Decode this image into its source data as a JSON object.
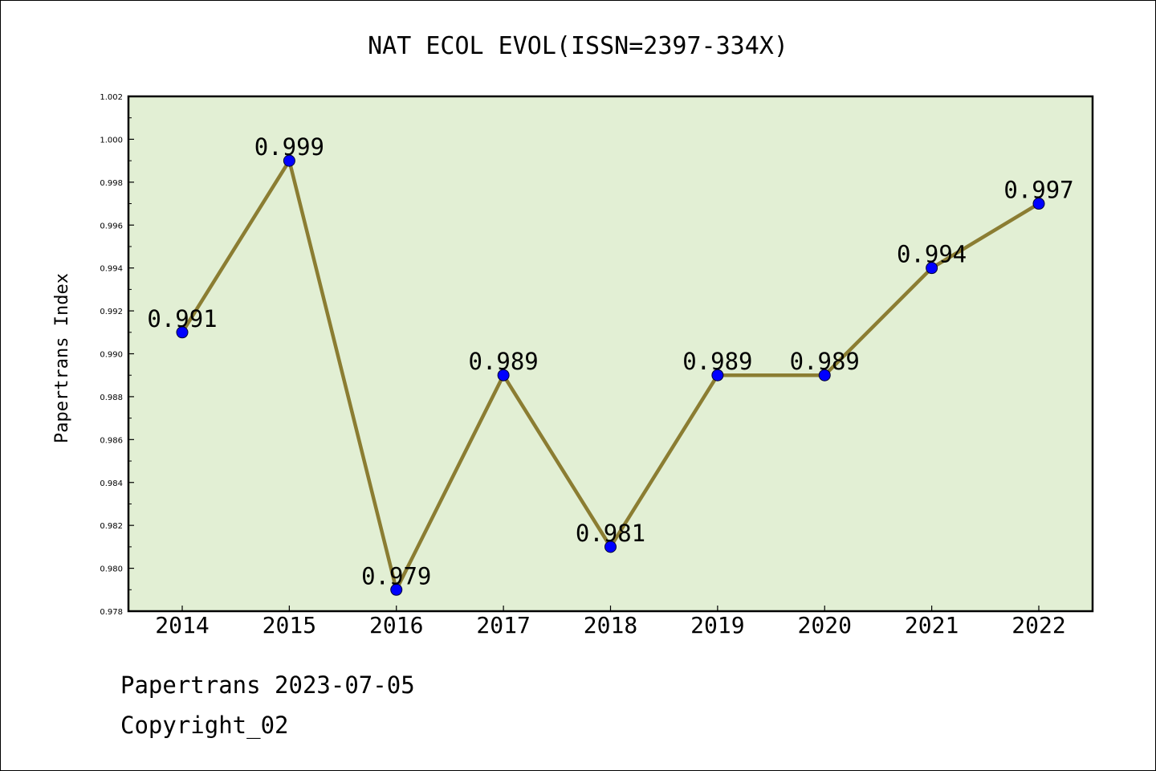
{
  "chart_data": {
    "type": "line",
    "title": "NAT ECOL EVOL(ISSN=2397-334X)",
    "ylabel": "Papertrans Index",
    "xlabel": "",
    "categories": [
      "2014",
      "2015",
      "2016",
      "2017",
      "2018",
      "2019",
      "2020",
      "2021",
      "2022"
    ],
    "values": [
      0.991,
      0.999,
      0.979,
      0.989,
      0.981,
      0.989,
      0.989,
      0.994,
      0.997
    ],
    "data_labels": [
      "0.991",
      "0.999",
      "0.979",
      "0.989",
      "0.981",
      "0.989",
      "0.989",
      "0.994",
      "0.997"
    ],
    "ylim": [
      0.978,
      1.002
    ],
    "yticks": [
      "0.978",
      "0.980",
      "0.982",
      "0.984",
      "0.986",
      "0.988",
      "0.990",
      "0.992",
      "0.994",
      "0.996",
      "0.998",
      "1.000",
      "1.002"
    ],
    "grid": false,
    "legend": "none",
    "colors": {
      "line": "#8b7d32",
      "marker": "#0000ff",
      "plot_background": "#e2efd4"
    }
  },
  "footer": {
    "line1": "Papertrans 2023-07-05",
    "line2": "Copyright_02"
  }
}
